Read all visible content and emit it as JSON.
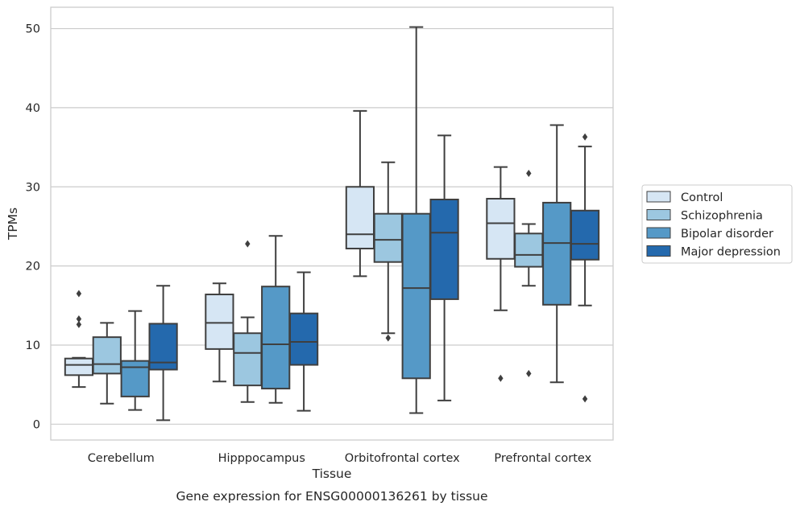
{
  "chart_data": {
    "type": "box",
    "xlabel": "Tissue",
    "ylabel": "TPMs",
    "caption": "Gene expression for ENSG00000136261 by tissue",
    "ylim": [
      -2,
      52.7
    ],
    "yticks": [
      0,
      10,
      20,
      30,
      40,
      50
    ],
    "grid": "horizontal",
    "legend_position": "right",
    "categories": [
      "Cerebellum",
      "Hipppocampus",
      "Orbitofrontal cortex",
      "Prefrontal cortex"
    ],
    "series": [
      {
        "name": "Control",
        "color": "#d6e6f4",
        "boxes": [
          {
            "whislo": 4.7,
            "q1": 6.2,
            "med": 7.5,
            "q3": 8.3,
            "whishi": 8.4,
            "fliers": [
              16.5,
              13.3,
              12.6
            ]
          },
          {
            "whislo": 5.4,
            "q1": 9.5,
            "med": 12.8,
            "q3": 16.4,
            "whishi": 17.8,
            "fliers": []
          },
          {
            "whislo": 18.7,
            "q1": 22.2,
            "med": 24.0,
            "q3": 30.0,
            "whishi": 39.6,
            "fliers": []
          },
          {
            "whislo": 14.4,
            "q1": 20.9,
            "med": 25.4,
            "q3": 28.5,
            "whishi": 32.5,
            "fliers": [
              5.8
            ]
          }
        ]
      },
      {
        "name": "Schizophrenia",
        "color": "#9cc7e0",
        "boxes": [
          {
            "whislo": 2.6,
            "q1": 6.4,
            "med": 7.6,
            "q3": 11.0,
            "whishi": 12.8,
            "fliers": []
          },
          {
            "whislo": 2.8,
            "q1": 4.9,
            "med": 9.0,
            "q3": 11.5,
            "whishi": 13.5,
            "fliers": [
              22.8
            ]
          },
          {
            "whislo": 11.5,
            "q1": 20.5,
            "med": 23.3,
            "q3": 26.6,
            "whishi": 33.1,
            "fliers": [
              10.9
            ]
          },
          {
            "whislo": 17.5,
            "q1": 19.9,
            "med": 21.4,
            "q3": 24.1,
            "whishi": 25.3,
            "fliers": [
              31.7,
              6.4
            ]
          }
        ]
      },
      {
        "name": "Bipolar disorder",
        "color": "#5599c7",
        "boxes": [
          {
            "whislo": 1.8,
            "q1": 3.5,
            "med": 7.2,
            "q3": 8.0,
            "whishi": 14.3,
            "fliers": []
          },
          {
            "whislo": 2.7,
            "q1": 4.5,
            "med": 10.1,
            "q3": 17.4,
            "whishi": 23.8,
            "fliers": []
          },
          {
            "whislo": 1.4,
            "q1": 5.8,
            "med": 17.2,
            "q3": 26.6,
            "whishi": 50.2,
            "fliers": []
          },
          {
            "whislo": 5.3,
            "q1": 15.1,
            "med": 22.9,
            "q3": 28.0,
            "whishi": 37.8,
            "fliers": []
          }
        ]
      },
      {
        "name": "Major depression",
        "color": "#2469ad",
        "boxes": [
          {
            "whislo": 0.5,
            "q1": 6.9,
            "med": 7.8,
            "q3": 12.7,
            "whishi": 17.5,
            "fliers": []
          },
          {
            "whislo": 1.7,
            "q1": 7.5,
            "med": 10.4,
            "q3": 14.0,
            "whishi": 19.2,
            "fliers": []
          },
          {
            "whislo": 3.0,
            "q1": 15.8,
            "med": 24.2,
            "q3": 28.4,
            "whishi": 36.5,
            "fliers": []
          },
          {
            "whislo": 15.0,
            "q1": 20.8,
            "med": 22.8,
            "q3": 27.0,
            "whishi": 35.1,
            "fliers": [
              36.3,
              3.2
            ]
          }
        ]
      }
    ]
  },
  "colors": {
    "line": "#3f3f3f",
    "grid": "#cccccc",
    "frame": "#cccccc",
    "text": "#262626"
  }
}
